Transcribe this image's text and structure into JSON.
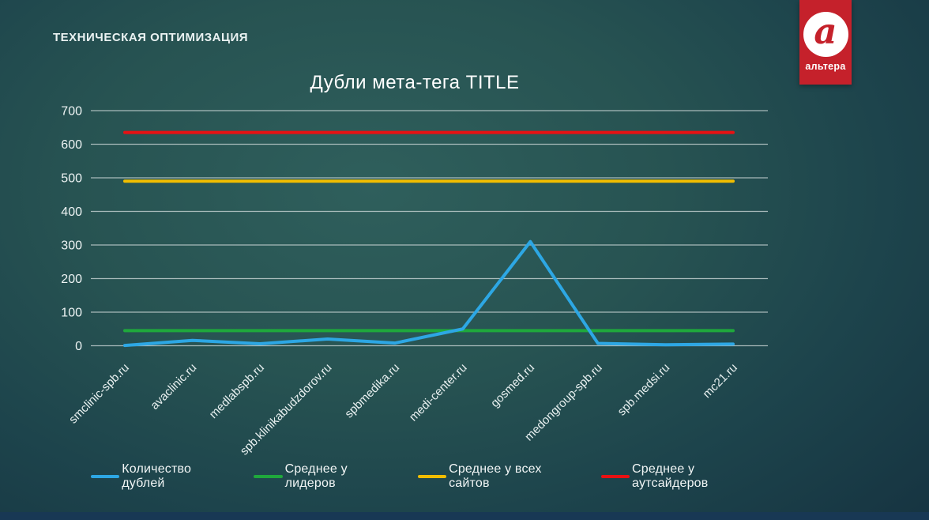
{
  "slide": {
    "header": "ТЕХНИЧЕСКАЯ ОПТИМИЗАЦИЯ",
    "logo": {
      "letter": "a",
      "brand": "альтера",
      "bg_color": "#c5212b"
    }
  },
  "chart_data": {
    "type": "line",
    "title": "Дубли мета-тега TITLE",
    "xlabel": "",
    "ylabel": "",
    "categories": [
      "smclinic-spb.ru",
      "avaclinic.ru",
      "medlabspb.ru",
      "spb.klinikabudzdorov.ru",
      "spbmedika.ru",
      "medi-center.ru",
      "gosmed.ru",
      "medongroup-spb.ru",
      "spb.medsi.ru",
      "mc21.ru"
    ],
    "series": [
      {
        "name": "Количество дублей",
        "color": "#2da7e4",
        "values": [
          1,
          16,
          6,
          20,
          8,
          50,
          310,
          7,
          3,
          5
        ]
      },
      {
        "name": "Среднее у лидеров",
        "color": "#1fa83c",
        "values": [
          45,
          45,
          45,
          45,
          45,
          45,
          45,
          45,
          45,
          45
        ]
      },
      {
        "name": "Среднее у всех сайтов",
        "color": "#f0bd00",
        "values": [
          490,
          490,
          490,
          490,
          490,
          490,
          490,
          490,
          490,
          490
        ]
      },
      {
        "name": "Среднее у аутсайдеров",
        "color": "#e81113",
        "values": [
          635,
          635,
          635,
          635,
          635,
          635,
          635,
          635,
          635,
          635
        ]
      }
    ],
    "ylim": [
      0,
      700
    ],
    "yticks": [
      0,
      100,
      200,
      300,
      400,
      500,
      600,
      700
    ],
    "grid": true,
    "legend_position": "bottom"
  }
}
